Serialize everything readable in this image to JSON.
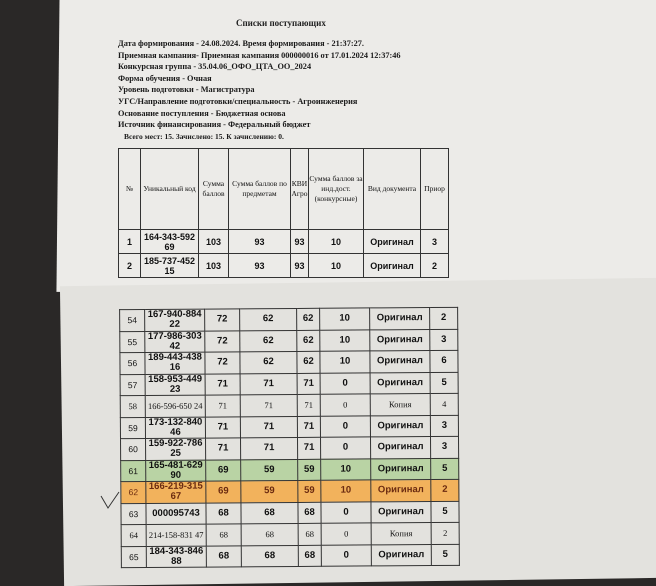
{
  "document": {
    "title": "Списки поступающих",
    "meta_lines": [
      "Дата формирования - 24.08.2024. Время формирования - 21:37:27.",
      "Приемная кампания- Приемная кампания 000000016 от 17.01.2024 12:37:46",
      "Конкурсная группа - 35.04.06_ОФО_ЦТА_ОО_2024",
      "Форма обучения - Очная",
      "Уровень подготовки - Магистратура",
      "УГС/Направление подготовки/специальность - Агроинженерия",
      "Основание поступления - Бюджетная основа",
      "Источник финансирования - Федеральный бюджет"
    ],
    "places_summary": "Всего мест: 15. Зачислено: 15. К зачислению: 0."
  },
  "table_headers": [
    "№",
    "Уникальный код",
    "Сумма баллов",
    "Сумма баллов по предметам",
    "КВИ Агро",
    "Сумма баллов за инд.дост. (конкурсные)",
    "Вид документа",
    "Приор"
  ],
  "top_rows": [
    [
      "1",
      "164-343-592 69",
      "103",
      "93",
      "93",
      "10",
      "Оригинал",
      "3"
    ],
    [
      "2",
      "185-737-452 15",
      "103",
      "93",
      "93",
      "10",
      "Оригинал",
      "2"
    ]
  ],
  "bottom_rows": [
    {
      "cells": [
        "54",
        "167-940-884 22",
        "72",
        "62",
        "62",
        "10",
        "Оригинал",
        "2"
      ],
      "style": ""
    },
    {
      "cells": [
        "55",
        "177-986-303 42",
        "72",
        "62",
        "62",
        "10",
        "Оригинал",
        "3"
      ],
      "style": ""
    },
    {
      "cells": [
        "56",
        "189-443-438 16",
        "72",
        "62",
        "62",
        "10",
        "Оригинал",
        "6"
      ],
      "style": ""
    },
    {
      "cells": [
        "57",
        "158-953-449 23",
        "71",
        "71",
        "71",
        "0",
        "Оригинал",
        "5"
      ],
      "style": ""
    },
    {
      "cells": [
        "58",
        "166-596-650 24",
        "71",
        "71",
        "71",
        "0",
        "Копия",
        "4"
      ],
      "style": "serif"
    },
    {
      "cells": [
        "59",
        "173-132-840 46",
        "71",
        "71",
        "71",
        "0",
        "Оригинал",
        "3"
      ],
      "style": ""
    },
    {
      "cells": [
        "60",
        "159-922-786 25",
        "71",
        "71",
        "71",
        "0",
        "Оригинал",
        "3"
      ],
      "style": ""
    },
    {
      "cells": [
        "61",
        "165-481-629 90",
        "69",
        "59",
        "59",
        "10",
        "Оригинал",
        "5"
      ],
      "style": "green"
    },
    {
      "cells": [
        "62",
        "166-219-315 67",
        "69",
        "59",
        "59",
        "10",
        "Оригинал",
        "2"
      ],
      "style": "orange"
    },
    {
      "cells": [
        "63",
        "000095743",
        "68",
        "68",
        "68",
        "0",
        "Оригинал",
        "5"
      ],
      "style": ""
    },
    {
      "cells": [
        "64",
        "214-158-831 47",
        "68",
        "68",
        "68",
        "0",
        "Копия",
        "2"
      ],
      "style": "serif"
    },
    {
      "cells": [
        "65",
        "184-343-846 88",
        "68",
        "68",
        "68",
        "0",
        "Оригинал",
        "5"
      ],
      "style": ""
    }
  ],
  "highlight_colors": {
    "green": "#b9d3a4",
    "orange": "#f2b25c"
  }
}
